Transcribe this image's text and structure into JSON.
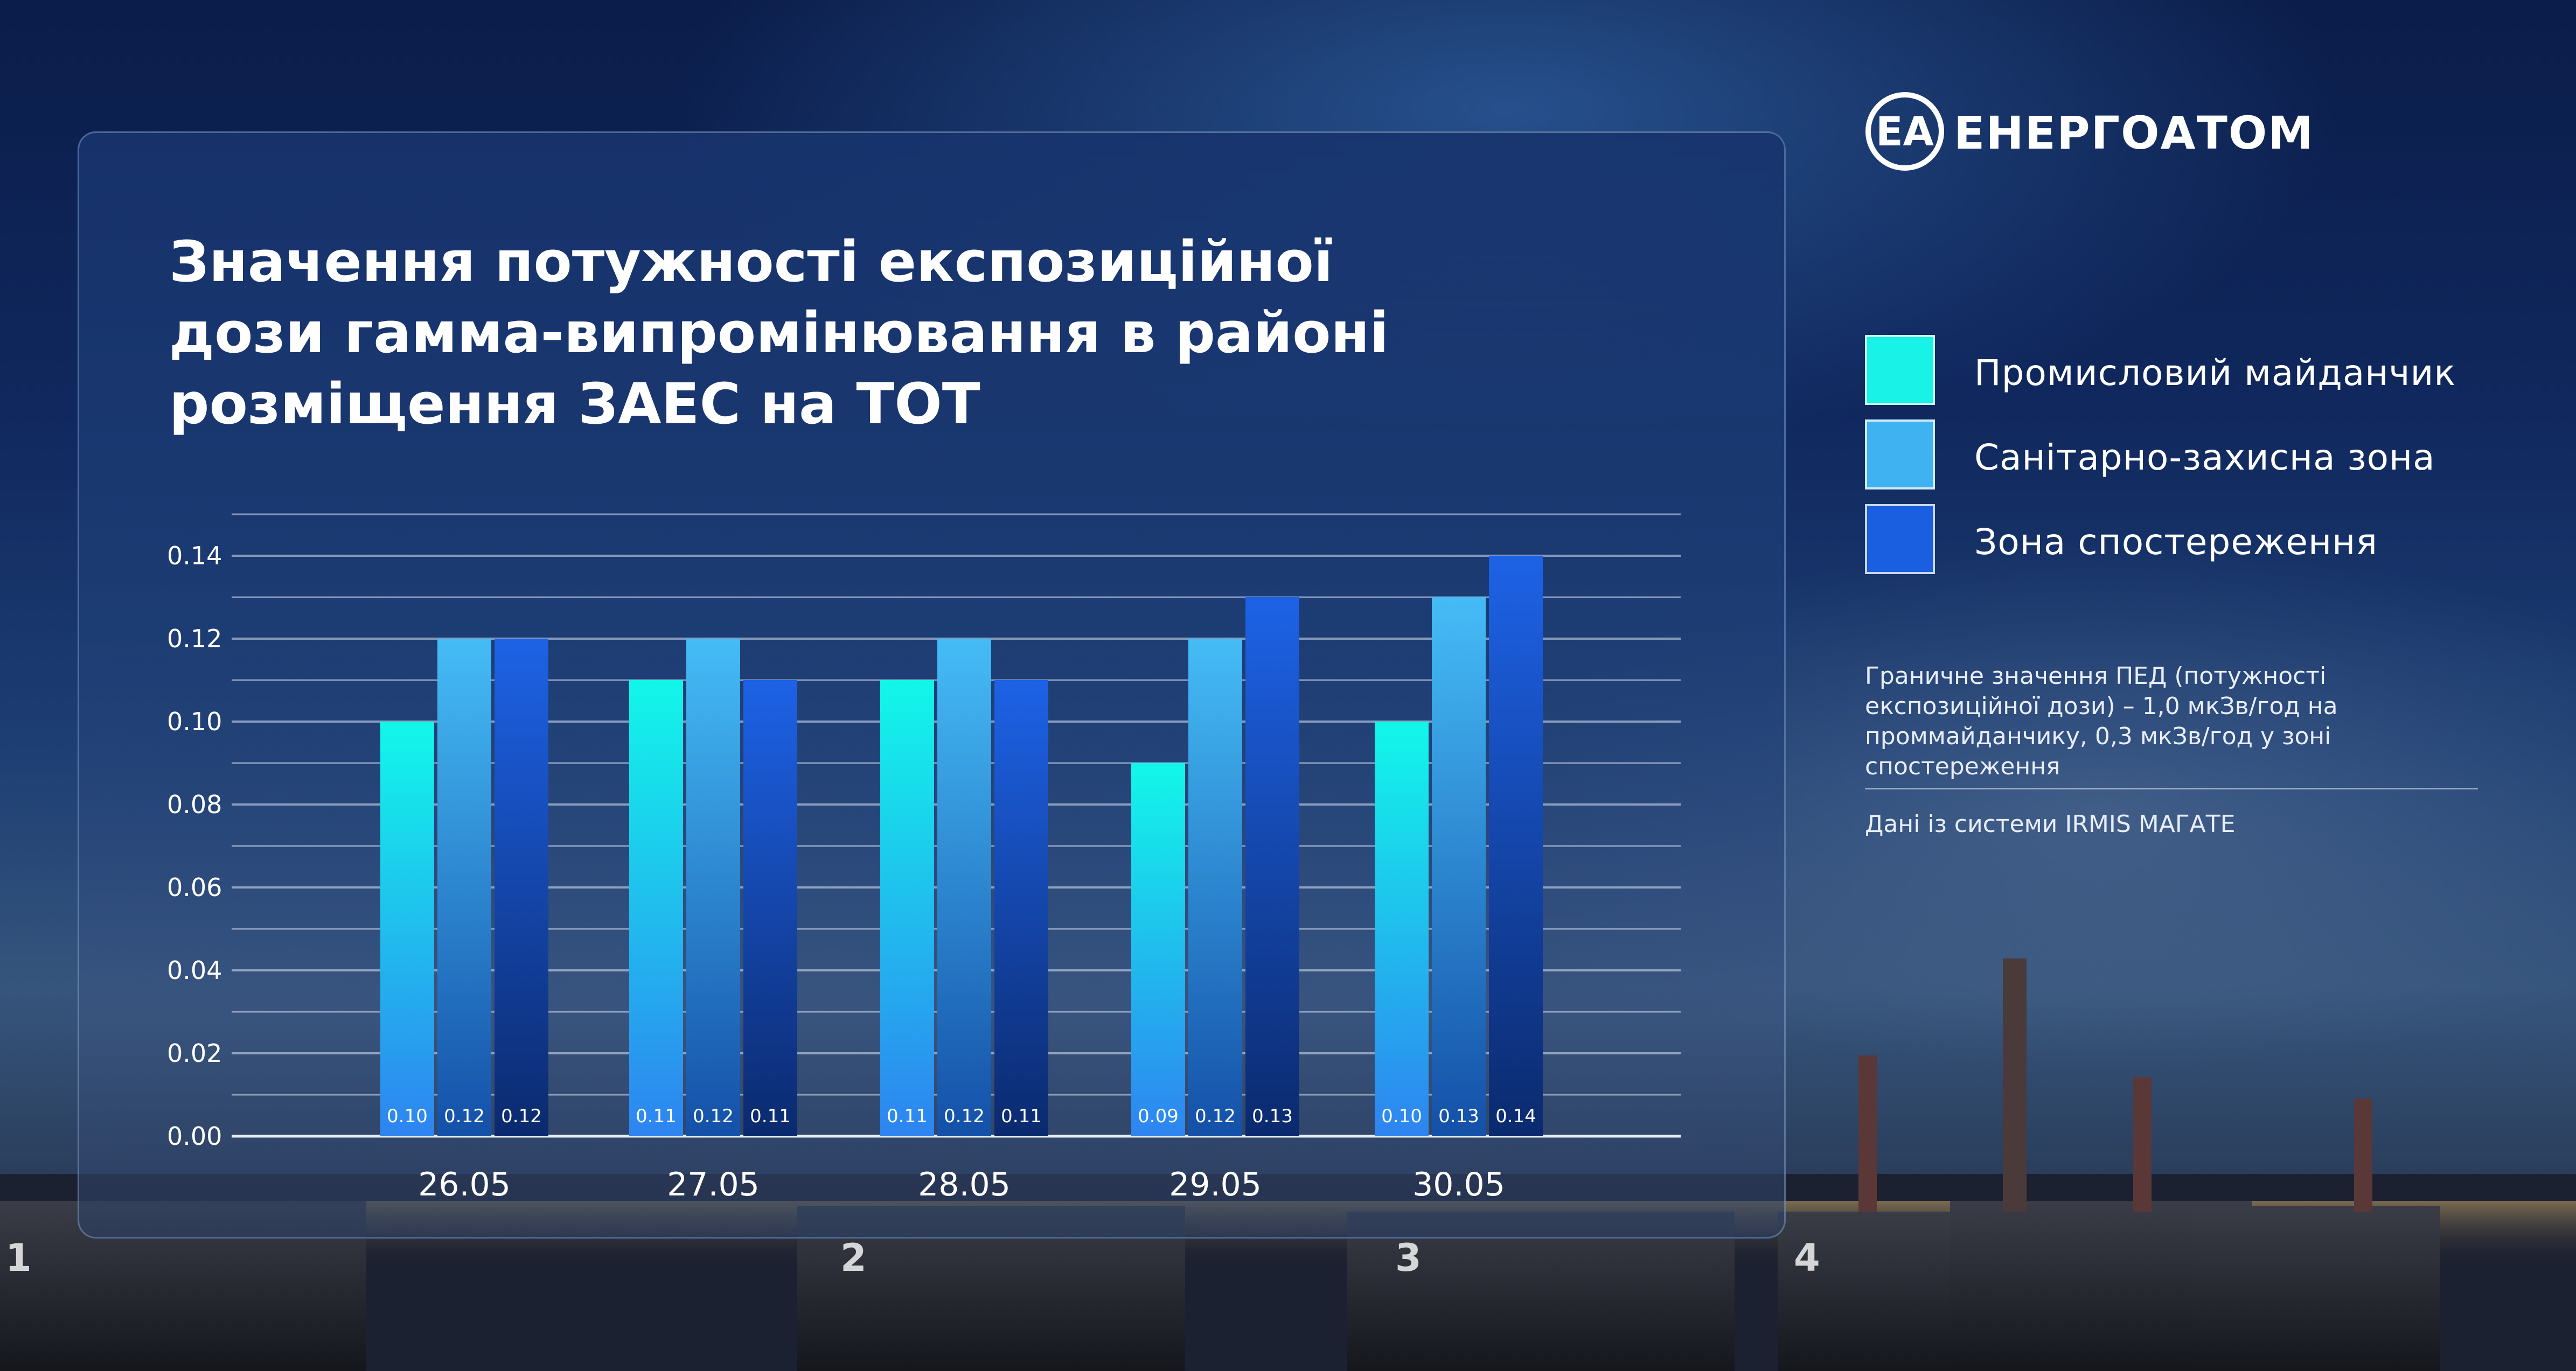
{
  "brand": {
    "logo_mark": "ЕА",
    "name": "ЕНЕРГОАТОМ"
  },
  "title_lines": [
    "Значення потужності експозиційної",
    "дози гамма-випромінювання в районі",
    "розміщення ЗАЕС на ТОТ"
  ],
  "legend": [
    {
      "label": "Промисловий майданчик",
      "color": "#19f2e6"
    },
    {
      "label": "Санітарно-захисна зона",
      "color": "#3fb2f2"
    },
    {
      "label": "Зона спостереження",
      "color": "#1a5fe0"
    }
  ],
  "note": "Граничне значення ПЕД (потужності експозиційної дози) – 1,0 мкЗв/год на проммайданчику, 0,3 мкЗв/год у зоні спостереження",
  "source": "Дані із системи IRMIS МАГАТЕ",
  "plant_unit_numbers": [
    "1",
    "2",
    "3",
    "4"
  ],
  "chart_data": {
    "type": "bar",
    "categories": [
      "26.05",
      "27.05",
      "28.05",
      "29.05",
      "30.05"
    ],
    "series": [
      {
        "name": "Промисловий майданчик",
        "values": [
          0.1,
          0.11,
          0.11,
          0.09,
          0.1
        ],
        "labels": [
          "0.10",
          "0.11",
          "0.11",
          "0.09",
          "0.10"
        ]
      },
      {
        "name": "Санітарно-захисна зона",
        "values": [
          0.12,
          0.12,
          0.12,
          0.12,
          0.13
        ],
        "labels": [
          "0.12",
          "0.12",
          "0.12",
          "0.12",
          "0.13"
        ]
      },
      {
        "name": "Зона спостереження",
        "values": [
          0.12,
          0.11,
          0.11,
          0.13,
          0.14
        ],
        "labels": [
          "0.12",
          "0.11",
          "0.11",
          "0.13",
          "0.14"
        ]
      }
    ],
    "yticks": [
      "0.00",
      "0.02",
      "0.04",
      "0.06",
      "0.08",
      "0.10",
      "0.12",
      "0.14"
    ],
    "ylim": [
      0,
      0.15
    ],
    "grid": true,
    "legend_position": "right"
  }
}
